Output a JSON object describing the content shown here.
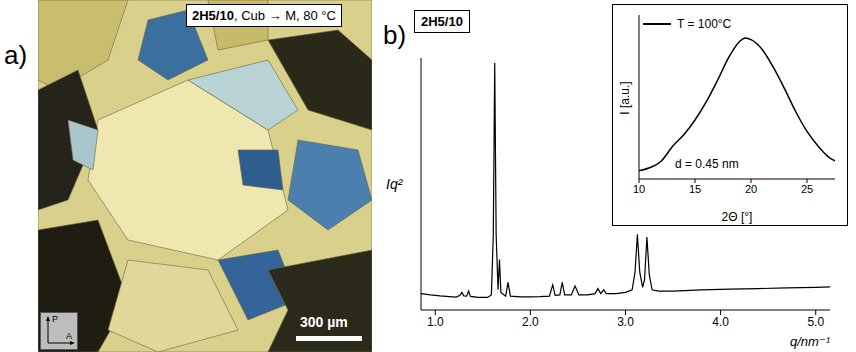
{
  "panel_a": {
    "label": "a)",
    "caption": "2H5/10, Cub → M, 80 °C",
    "scale_bar": "300 µm",
    "polarizer": "P",
    "analyzer": "A"
  },
  "chart_data": [
    {
      "type": "line",
      "panel_label": "b)",
      "title": "2H5/10",
      "ylabel": "Iq²",
      "xlabel": "q/nm⁻¹",
      "x": [
        0.85,
        0.95,
        1.05,
        1.15,
        1.22,
        1.26,
        1.28,
        1.3,
        1.33,
        1.35,
        1.37,
        1.45,
        1.55,
        1.59,
        1.61,
        1.625,
        1.64,
        1.66,
        1.675,
        1.69,
        1.74,
        1.765,
        1.79,
        1.9,
        2.0,
        2.1,
        2.2,
        2.235,
        2.26,
        2.31,
        2.335,
        2.36,
        2.43,
        2.47,
        2.51,
        2.6,
        2.68,
        2.71,
        2.74,
        2.77,
        2.8,
        2.9,
        3.0,
        3.07,
        3.1,
        3.125,
        3.15,
        3.18,
        3.2,
        3.225,
        3.25,
        3.28,
        3.35,
        3.5,
        3.8,
        4.1,
        4.4,
        4.7,
        5.0,
        5.15
      ],
      "values": [
        6.5,
        6,
        5.6,
        5.3,
        5.1,
        5.8,
        7,
        5.6,
        5.5,
        7.5,
        5.4,
        5,
        5,
        6,
        30,
        98,
        30,
        8,
        20,
        7,
        5.5,
        11,
        5.5,
        5.2,
        5.2,
        5.3,
        5.5,
        10,
        5.8,
        6,
        11,
        6,
        6,
        9.5,
        6,
        6,
        6.5,
        8.5,
        6.5,
        8,
        6.5,
        6.5,
        7,
        8,
        15,
        30,
        15,
        9,
        12,
        29,
        14,
        8,
        7.5,
        7.5,
        8,
        8.3,
        8.5,
        8.8,
        9,
        9.2
      ],
      "color": "#000000",
      "xlim": [
        0.85,
        5.15
      ],
      "xticks": [
        {
          "value": 1,
          "label": "1.0"
        },
        {
          "value": 2,
          "label": "2.0"
        },
        {
          "value": 3,
          "label": "3.0"
        },
        {
          "value": 4,
          "label": "4.0"
        },
        {
          "value": 5,
          "label": "5.0"
        }
      ],
      "ylim": [
        0,
        100
      ],
      "yticks": [],
      "tick_labels": "x",
      "grid": false
    },
    {
      "type": "line",
      "xlabel": "2Θ [°]",
      "ylabel": "I [a.u.]",
      "x": [
        10,
        11,
        12,
        13,
        14,
        15,
        16,
        17,
        18,
        19,
        19.5,
        20,
        21,
        22,
        23,
        24,
        25,
        26,
        27,
        27.5
      ],
      "series": [
        {
          "name": "T = 100°C",
          "color": "#000000",
          "values": [
            5,
            7,
            11,
            20,
            27,
            36,
            47,
            60,
            74,
            84,
            86,
            85,
            79,
            68,
            55,
            41,
            29,
            20,
            13,
            11
          ]
        }
      ],
      "xlim": [
        10,
        27.5
      ],
      "xticks": [
        10,
        15,
        20,
        25
      ],
      "ylim": [
        0,
        100
      ],
      "yticks": [],
      "annotations": [
        "d = 0.45 nm"
      ],
      "legend": "upper left",
      "tick_labels": "x",
      "grid": false
    }
  ]
}
